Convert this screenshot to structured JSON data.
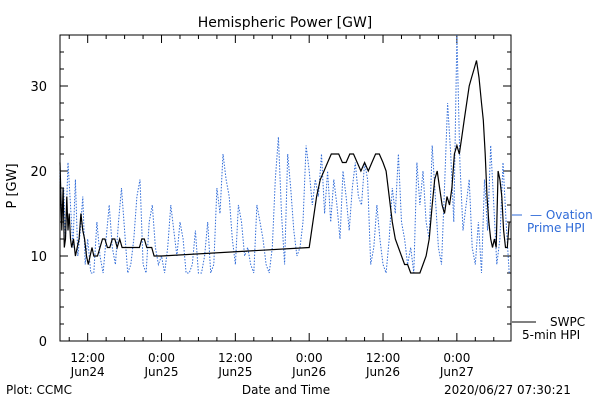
{
  "chart_data": {
    "type": "line",
    "title": "Hemispheric Power [GW]",
    "xlabel": "Date and Time",
    "ylabel": "P [GW]",
    "ylim": [
      0,
      36
    ],
    "yticks": [
      0,
      10,
      20,
      30
    ],
    "xlim": [
      -16.5,
      56.8
    ],
    "x_unit": "hours since 2020-06-25 00:00 UT",
    "xticks": [
      {
        "x": -12,
        "time": "12:00",
        "date": "Jun24"
      },
      {
        "x": 0,
        "time": "0:00",
        "date": "Jun25"
      },
      {
        "x": 12,
        "time": "12:00",
        "date": "Jun25"
      },
      {
        "x": 24,
        "time": "0:00",
        "date": "Jun26"
      },
      {
        "x": 36,
        "time": "12:00",
        "date": "Jun26"
      },
      {
        "x": 48,
        "time": "0:00",
        "date": "Jun27"
      }
    ],
    "grid": false,
    "series": [
      {
        "name": "Ovation Prime HPI",
        "color": "#2f6bd8",
        "style": "dotted",
        "x": [
          -16.5,
          -16.2,
          -15.9,
          -15.6,
          -15.2,
          -14.8,
          -14.4,
          -14.0,
          -13.6,
          -13.2,
          -12.8,
          -12.4,
          -12.0,
          -11.5,
          -11.0,
          -10.5,
          -10.0,
          -9.5,
          -9.0,
          -8.5,
          -8.0,
          -7.5,
          -7.0,
          -6.5,
          -6.0,
          -5.5,
          -5.0,
          -4.5,
          -4.0,
          -3.5,
          -3.0,
          -2.5,
          -2.0,
          -1.5,
          -1.0,
          -0.5,
          0.0,
          0.5,
          1.0,
          1.5,
          2.0,
          2.5,
          3.0,
          3.5,
          4.0,
          4.5,
          5.0,
          5.5,
          6.0,
          6.5,
          7.0,
          7.5,
          8.0,
          8.5,
          9.0,
          9.5,
          10.0,
          10.5,
          11.0,
          11.5,
          12.0,
          12.5,
          13.0,
          13.5,
          14.0,
          14.5,
          15.0,
          15.5,
          16.0,
          16.5,
          17.0,
          17.5,
          18.0,
          18.5,
          19.0,
          19.5,
          20.0,
          20.5,
          21.0,
          21.5,
          22.0,
          22.5,
          23.0,
          23.5,
          24.0,
          24.5,
          25.0,
          25.5,
          26.0,
          26.5,
          27.0,
          27.5,
          28.0,
          28.5,
          29.0,
          29.5,
          30.0,
          30.5,
          31.0,
          31.5,
          32.0,
          32.5,
          33.0,
          33.5,
          34.0,
          34.5,
          35.0,
          35.5,
          36.0,
          36.5,
          37.0,
          37.5,
          38.0,
          38.5,
          39.0,
          39.5,
          40.0,
          40.5,
          41.0,
          41.5,
          42.0,
          42.5,
          43.0,
          43.5,
          44.0,
          44.5,
          45.0,
          45.5,
          46.0,
          46.5,
          47.0,
          47.5,
          48.0,
          48.5,
          49.0,
          49.5,
          50.0,
          50.5,
          51.0,
          51.5,
          52.0,
          52.5,
          53.0,
          53.5,
          54.0,
          54.5,
          55.0,
          55.5,
          56.0,
          56.5
        ],
        "y": [
          20,
          14,
          18,
          12,
          21,
          16,
          11,
          19,
          10,
          13,
          17,
          9,
          12,
          8,
          8,
          14,
          10,
          8,
          12,
          16,
          11,
          9,
          14,
          18,
          13,
          8,
          9,
          12,
          17,
          19,
          9,
          8,
          14,
          16,
          11,
          9,
          10,
          8,
          11,
          16,
          13,
          10,
          14,
          12,
          8,
          8,
          9,
          13,
          8,
          8,
          10,
          14,
          8,
          9,
          18,
          15,
          22,
          19,
          17,
          12,
          9,
          16,
          14,
          10,
          11,
          9,
          8,
          16,
          14,
          12,
          9,
          8,
          11,
          19,
          24,
          15,
          9,
          22,
          18,
          13,
          10,
          11,
          14,
          23,
          20,
          16,
          19,
          17,
          22,
          15,
          20,
          14,
          19,
          16,
          12,
          20,
          17,
          13,
          18,
          21,
          17,
          16,
          21,
          19,
          9,
          11,
          16,
          12,
          9,
          8,
          12,
          18,
          15,
          22,
          14,
          12,
          9,
          11,
          8,
          21,
          16,
          20,
          14,
          12,
          23,
          17,
          11,
          9,
          18,
          28,
          22,
          14,
          36,
          21,
          13,
          16,
          19,
          11,
          9,
          14,
          8,
          19,
          13,
          23,
          16,
          9,
          12,
          21,
          14,
          8
        ]
      },
      {
        "name": "SWPC 5-min HPI",
        "color": "#000000",
        "style": "solid",
        "x": [
          -16.5,
          -16.2,
          -16.0,
          -15.8,
          -15.6,
          -15.4,
          -15.2,
          -15.0,
          -14.8,
          -14.6,
          -14.3,
          -14.0,
          -13.7,
          -13.4,
          -13.1,
          -12.8,
          -12.5,
          -12.2,
          -11.9,
          -11.6,
          -11.3,
          -11.0,
          -10.7,
          -10.4,
          -10.0,
          -9.6,
          -9.2,
          -8.8,
          -8.4,
          -8.0,
          -7.6,
          -7.2,
          -6.8,
          -6.4,
          -6.0,
          -5.6,
          -5.2,
          -4.8,
          -4.4,
          -4.0,
          -3.6,
          -3.2,
          -2.8,
          -2.4,
          -2.0,
          -1.6,
          -1.2,
          -0.8,
          -0.4,
          0.0,
          24.0,
          24.6,
          25.2,
          25.8,
          26.4,
          27.0,
          27.6,
          28.2,
          28.8,
          29.4,
          30.0,
          30.6,
          31.2,
          31.8,
          32.4,
          33.0,
          33.6,
          34.2,
          34.8,
          35.4,
          36.0,
          36.5,
          37.0,
          37.5,
          38.0,
          38.5,
          39.0,
          39.5,
          40.0,
          40.5,
          41.0,
          41.5,
          42.0,
          42.5,
          43.0,
          43.5,
          44.0,
          44.4,
          44.8,
          45.2,
          45.6,
          46.0,
          46.4,
          46.8,
          47.2,
          47.6,
          48.0,
          48.4,
          48.8,
          49.2,
          49.6,
          50.0,
          50.4,
          50.8,
          51.2,
          51.6,
          52.0,
          52.3,
          52.6,
          52.9,
          53.2,
          53.5,
          53.8,
          54.1,
          54.4,
          54.7,
          55.0,
          55.3,
          55.6,
          55.9,
          56.2,
          56.5
        ],
        "y": [
          21,
          13,
          18,
          11,
          12,
          17,
          13,
          15,
          12,
          11,
          12,
          10,
          11,
          12,
          15,
          13,
          12,
          10,
          9,
          10,
          11,
          10,
          10,
          10,
          11,
          12,
          12,
          11,
          11,
          12,
          12,
          11,
          12,
          11,
          11,
          11,
          11,
          11,
          11,
          11,
          11,
          12,
          12,
          11,
          11,
          11,
          10,
          10,
          10,
          10,
          11,
          14,
          17,
          19,
          20,
          21,
          22,
          22,
          22,
          21,
          21,
          22,
          22,
          21,
          20,
          21,
          20,
          21,
          22,
          22,
          21,
          20,
          17,
          14,
          12,
          11,
          10,
          9,
          9,
          8,
          8,
          8,
          8,
          9,
          10,
          12,
          16,
          19,
          20,
          18,
          16,
          15,
          17,
          16,
          18,
          22,
          23,
          22,
          24,
          26,
          28,
          30,
          31,
          32,
          33,
          31,
          28,
          26,
          22,
          17,
          14,
          12,
          11,
          12,
          11,
          20,
          19,
          17,
          13,
          11,
          11,
          14
        ]
      }
    ],
    "legend": "right"
  },
  "footer": {
    "plot_label": "Plot: CCMC",
    "timestamp": "2020/06/27 07:30:21"
  },
  "legend": {
    "ovation_line1": "— Ovation",
    "ovation_line2": "Prime HPI",
    "swpc_line1": "SWPC",
    "swpc_line2": "5-min HPI"
  }
}
